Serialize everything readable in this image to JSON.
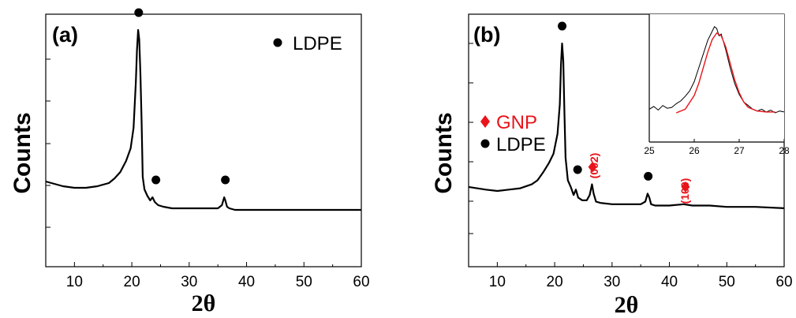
{
  "chart_data": [
    {
      "panel_label": "(a)",
      "type": "line",
      "xlabel": "2θ",
      "ylabel": "Counts",
      "xlim": [
        5,
        60
      ],
      "xticks": [
        10,
        20,
        30,
        40,
        50,
        60
      ],
      "y_tick_labels_shown": false,
      "legend": [
        {
          "marker": "circle",
          "color": "#000000",
          "label": "LDPE"
        }
      ],
      "legend_position": "top-right",
      "series": [
        {
          "x": [
            5,
            8,
            10,
            12,
            14,
            16,
            17,
            18,
            19,
            19.8,
            20.3,
            20.7,
            20.9,
            21.1,
            21.3,
            21.5,
            21.7,
            21.9,
            22.2,
            22.7,
            23.2,
            23.6,
            24.0,
            24.6,
            25.5,
            27,
            30,
            33,
            35,
            35.7,
            36.1,
            36.3,
            36.6,
            37.0,
            38,
            42,
            46,
            50,
            55,
            60
          ],
          "y": [
            0.22,
            0.19,
            0.18,
            0.18,
            0.19,
            0.21,
            0.24,
            0.28,
            0.35,
            0.43,
            0.56,
            0.85,
            1.05,
            1.18,
            1.12,
            0.9,
            0.6,
            0.25,
            0.17,
            0.13,
            0.1,
            0.12,
            0.09,
            0.07,
            0.06,
            0.05,
            0.05,
            0.05,
            0.05,
            0.07,
            0.12,
            0.1,
            0.06,
            0.05,
            0.04,
            0.04,
            0.04,
            0.04,
            0.04,
            0.04
          ]
        }
      ],
      "markers": [
        {
          "x": 21.2,
          "label": "LDPE"
        },
        {
          "x": 24.2,
          "label": "LDPE"
        },
        {
          "x": 36.3,
          "label": "LDPE"
        }
      ]
    },
    {
      "panel_label": "(b)",
      "type": "line",
      "xlabel": "2θ",
      "ylabel": "Counts",
      "xlim": [
        5,
        60
      ],
      "xticks": [
        10,
        20,
        30,
        40,
        50,
        60
      ],
      "y_tick_labels_shown": false,
      "legend": [
        {
          "marker": "diamond",
          "color": "#e8141a",
          "label": "GNP"
        },
        {
          "marker": "circle",
          "color": "#000000",
          "label": "LDPE"
        }
      ],
      "legend_position": "middle-left",
      "series": [
        {
          "x": [
            5,
            8,
            10,
            12,
            14,
            16,
            17,
            18,
            19,
            19.8,
            20.5,
            20.9,
            21.1,
            21.3,
            21.5,
            21.7,
            21.9,
            22.3,
            22.8,
            23.3,
            23.7,
            24.1,
            24.8,
            25.6,
            26.1,
            26.5,
            26.8,
            27.2,
            28,
            30,
            33,
            35,
            35.8,
            36.2,
            36.5,
            36.8,
            37.5,
            40,
            42.5,
            44,
            47,
            50,
            55,
            60
          ],
          "y": [
            0.2,
            0.18,
            0.17,
            0.18,
            0.19,
            0.22,
            0.25,
            0.31,
            0.38,
            0.45,
            0.6,
            0.82,
            1.12,
            1.28,
            1.15,
            0.75,
            0.42,
            0.25,
            0.2,
            0.14,
            0.18,
            0.12,
            0.1,
            0.1,
            0.14,
            0.22,
            0.15,
            0.09,
            0.08,
            0.07,
            0.07,
            0.07,
            0.09,
            0.15,
            0.12,
            0.07,
            0.06,
            0.06,
            0.07,
            0.06,
            0.06,
            0.05,
            0.05,
            0.04
          ]
        }
      ],
      "markers": [
        {
          "x": 21.3,
          "label": "LDPE"
        },
        {
          "x": 24.0,
          "label": "LDPE"
        },
        {
          "x": 36.3,
          "label": "LDPE"
        },
        {
          "x": 26.6,
          "label": "GNP",
          "annotation": "(002)"
        },
        {
          "x": 42.8,
          "label": "GNP",
          "annotation": "(100)"
        }
      ],
      "inset": {
        "type": "line",
        "xlim": [
          25,
          28
        ],
        "xticks": [
          25,
          26,
          27,
          28
        ],
        "series": [
          {
            "x": [
              25.0,
              25.1,
              25.2,
              25.3,
              25.4,
              25.5,
              25.6,
              25.7,
              25.8,
              25.9,
              26.0,
              26.1,
              26.2,
              26.3,
              26.4,
              26.45,
              26.5,
              26.55,
              26.6,
              26.7,
              26.8,
              26.9,
              27.0,
              27.1,
              27.2,
              27.3,
              27.4,
              27.5,
              27.6,
              27.7,
              27.8,
              27.9,
              28.0
            ],
            "y": [
              0.1,
              0.13,
              0.09,
              0.14,
              0.11,
              0.12,
              0.16,
              0.19,
              0.24,
              0.3,
              0.4,
              0.55,
              0.7,
              0.85,
              0.95,
              1.0,
              0.98,
              0.9,
              0.92,
              0.75,
              0.55,
              0.38,
              0.26,
              0.18,
              0.14,
              0.1,
              0.08,
              0.1,
              0.07,
              0.09,
              0.06,
              0.08,
              0.07
            ]
          }
        ],
        "fit": [
          {
            "color": "#e8141a",
            "x": [
              25.6,
              25.8,
              26.0,
              26.1,
              26.2,
              26.3,
              26.4,
              26.5,
              26.6,
              26.7,
              26.8,
              26.9,
              27.0,
              27.1,
              27.2,
              27.4,
              27.6,
              27.8
            ],
            "y": [
              0.06,
              0.1,
              0.25,
              0.38,
              0.55,
              0.72,
              0.86,
              0.93,
              0.9,
              0.78,
              0.6,
              0.42,
              0.28,
              0.18,
              0.12,
              0.08,
              0.07,
              0.07
            ]
          }
        ]
      }
    }
  ]
}
